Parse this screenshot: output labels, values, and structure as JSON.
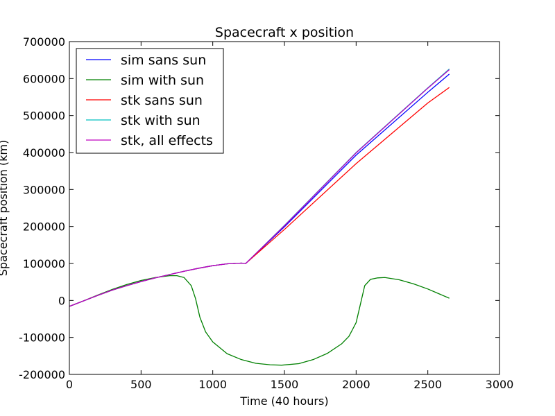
{
  "chart_data": {
    "type": "line",
    "title": "Spacecraft x position",
    "xlabel": "Time (40 hours)",
    "ylabel": "Spacecraft position (km)",
    "xlim": [
      0,
      3000
    ],
    "ylim": [
      -200000,
      700000
    ],
    "xticks": [
      0,
      500,
      1000,
      1500,
      2000,
      2500,
      3000
    ],
    "yticks": [
      -200000,
      -100000,
      0,
      100000,
      200000,
      300000,
      400000,
      500000,
      600000,
      700000
    ],
    "grid": false,
    "legend_position": "top-left",
    "series": [
      {
        "name": "sim sans sun",
        "color": "#0000ff",
        "x": [
          0,
          100,
          200,
          300,
          400,
          500,
          600,
          700,
          800,
          900,
          1000,
          1100,
          1200,
          1230,
          1500,
          2000,
          2500,
          2650
        ],
        "y": [
          -16000,
          -1000,
          14000,
          28000,
          40000,
          51000,
          61000,
          70000,
          79000,
          87000,
          94000,
          99000,
          101000,
          100000,
          199000,
          393000,
          563000,
          612000
        ]
      },
      {
        "name": "sim with sun",
        "color": "#008000",
        "x": [
          0,
          100,
          200,
          300,
          400,
          500,
          600,
          700,
          750,
          800,
          850,
          880,
          910,
          950,
          1000,
          1100,
          1200,
          1300,
          1400,
          1480,
          1600,
          1700,
          1800,
          1900,
          1950,
          2000,
          2030,
          2060,
          2100,
          2150,
          2200,
          2300,
          2400,
          2500,
          2650
        ],
        "y": [
          -16000,
          -1000,
          15000,
          30000,
          43000,
          54000,
          62000,
          67000,
          67000,
          62000,
          40000,
          5000,
          -45000,
          -85000,
          -112000,
          -144000,
          -160000,
          -170000,
          -174000,
          -175000,
          -171000,
          -160000,
          -143000,
          -117000,
          -97000,
          -60000,
          -10000,
          40000,
          57000,
          61000,
          62000,
          56000,
          45000,
          31000,
          6000
        ]
      },
      {
        "name": "stk sans sun",
        "color": "#ff0000",
        "x": [
          0,
          100,
          200,
          300,
          400,
          500,
          600,
          700,
          800,
          900,
          1000,
          1100,
          1200,
          1230,
          1500,
          2000,
          2500,
          2650
        ],
        "y": [
          -16000,
          -1000,
          14000,
          28000,
          40000,
          51000,
          61000,
          70000,
          79000,
          87000,
          94000,
          99000,
          101000,
          100000,
          192000,
          370000,
          534000,
          576000
        ]
      },
      {
        "name": "stk with sun",
        "color": "#00bfbf",
        "x": [
          0,
          100,
          200,
          300,
          400,
          500,
          600,
          700,
          800,
          900,
          1000,
          1100,
          1200,
          1230,
          1500,
          2000,
          2500,
          2650
        ],
        "y": [
          -16000,
          -1000,
          14000,
          28000,
          40000,
          51000,
          61000,
          70000,
          79000,
          87000,
          94000,
          99000,
          101000,
          100000,
          203000,
          400000,
          575000,
          626000
        ]
      },
      {
        "name": "stk, all effects",
        "color": "#bf00bf",
        "x": [
          0,
          100,
          200,
          300,
          400,
          500,
          600,
          700,
          800,
          900,
          1000,
          1100,
          1200,
          1230,
          1500,
          2000,
          2500,
          2650
        ],
        "y": [
          -16000,
          -1000,
          14000,
          28000,
          40000,
          51000,
          61000,
          70000,
          79000,
          87000,
          94000,
          99000,
          101000,
          100000,
          202000,
          399000,
          574000,
          624000
        ]
      }
    ]
  }
}
